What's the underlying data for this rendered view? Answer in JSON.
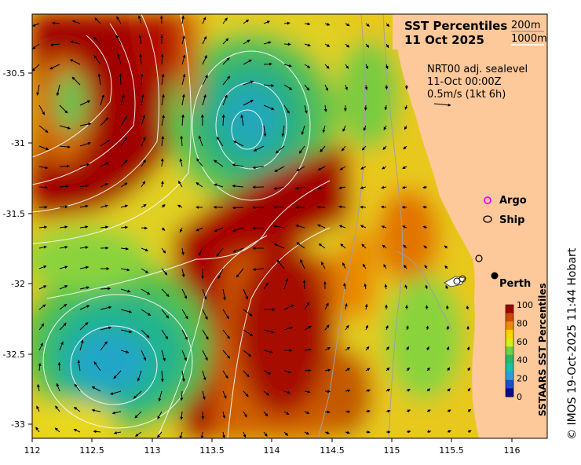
{
  "title_line1": "SST Percentiles",
  "title_line2": "11 Oct 2025",
  "contours_label1": "200m",
  "contours_label2": "1000m",
  "sealevel_line1": "NRT00 adj. sealevel",
  "sealevel_line2": "11-Oct 00:00Z",
  "sealevel_line3": "0.5m/s (1kt 6h)",
  "legend": {
    "argo": "Argo",
    "ship": "Ship",
    "argo_color": "#ff00ff",
    "ship_color": "#000000"
  },
  "place": "Perth",
  "colorbar": {
    "label": "SSTAARS SST Percentiles",
    "ticks": [
      "100",
      "80",
      "60",
      "40",
      "20",
      "0"
    ],
    "colors": [
      "#9e0000",
      "#cc4a00",
      "#ee8a00",
      "#ffd200",
      "#d8ec1a",
      "#6cd244",
      "#28b86a",
      "#19c0a6",
      "#2f9cd8",
      "#1c4ec8",
      "#0a0a8c"
    ]
  },
  "x_ticks": [
    "112",
    "112.5",
    "113",
    "113.5",
    "114",
    "114.5",
    "115",
    "115.5",
    "116"
  ],
  "y_ticks": [
    "-30.5",
    "-31",
    "-31.5",
    "-32",
    "-32.5",
    "-33"
  ],
  "credit": "© IMOS 19-Oct-2025 11:44 Hobart",
  "colors": {
    "land": "#fdc89a",
    "ocean_base": "#e6d21e"
  }
}
